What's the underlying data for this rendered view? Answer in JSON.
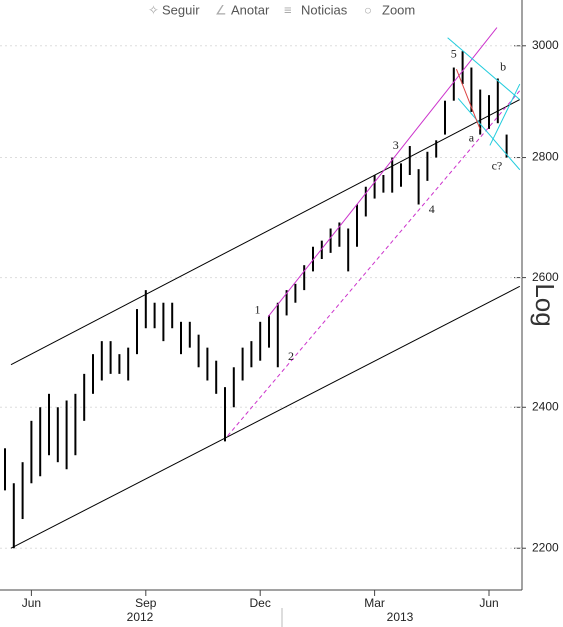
{
  "toolbar": [
    "Seguir",
    "Anotar",
    "Noticias",
    "Zoom"
  ],
  "chart_data": {
    "type": "ohlc",
    "y_label": "Log",
    "log_scale": true,
    "ylim": [
      2144,
      3086
    ],
    "yticks": [
      2200,
      2400,
      2600,
      2800,
      3000
    ],
    "categories": [
      null,
      null,
      null,
      "Jun",
      null,
      null,
      null,
      null,
      null,
      null,
      null,
      null,
      null,
      null,
      null,
      null,
      "Sep",
      null,
      null,
      null,
      null,
      null,
      null,
      null,
      null,
      null,
      null,
      null,
      null,
      "Dec",
      null,
      null,
      null,
      null,
      null,
      null,
      null,
      null,
      null,
      null,
      null,
      null,
      "Mar",
      null,
      null,
      null,
      null,
      null,
      null,
      null,
      null,
      null,
      null,
      null,
      null,
      "Jun",
      null,
      null
    ],
    "years": [
      "2012",
      "2013"
    ],
    "color": "#000000",
    "highs": [
      2340,
      2290,
      2320,
      2380,
      2400,
      2420,
      2400,
      2410,
      2420,
      2450,
      2480,
      2500,
      2500,
      2480,
      2490,
      2550,
      2580,
      2560,
      2560,
      2560,
      2530,
      2530,
      2510,
      2490,
      2470,
      2430,
      2460,
      2490,
      2500,
      2530,
      2540,
      2560,
      2580,
      2590,
      2620,
      2650,
      2660,
      2680,
      2690,
      2680,
      2720,
      2750,
      2770,
      2770,
      2800,
      2790,
      2820,
      2780,
      2810,
      2830,
      2900,
      2960,
      2990,
      2960,
      2920,
      2910,
      2940,
      2840
    ],
    "lows": [
      2280,
      2200,
      2240,
      2290,
      2300,
      2330,
      2320,
      2310,
      2330,
      2380,
      2420,
      2440,
      2450,
      2450,
      2440,
      2480,
      2520,
      2520,
      2500,
      2520,
      2480,
      2490,
      2460,
      2440,
      2420,
      2350,
      2400,
      2440,
      2460,
      2470,
      2490,
      2460,
      2540,
      2560,
      2580,
      2610,
      2630,
      2640,
      2650,
      2610,
      2650,
      2700,
      2730,
      2740,
      2740,
      2750,
      2770,
      2720,
      2760,
      2800,
      2840,
      2900,
      2930,
      2880,
      2840,
      2850,
      2860,
      2800
    ],
    "trendlines": [
      {
        "from": [
          0.68,
          2464
        ],
        "to": [
          58.5,
          2902
        ],
        "color": "#000000",
        "dashed": false
      },
      {
        "from": [
          0.68,
          2200
        ],
        "to": [
          58.5,
          2586
        ],
        "color": "#000000",
        "dashed": false
      },
      {
        "from": [
          29.9,
          2538
        ],
        "to": [
          55.9,
          3034
        ],
        "color": "#cc33cc",
        "dashed": false
      },
      {
        "from": [
          25.3,
          2358
        ],
        "to": [
          58.5,
          2918
        ],
        "color": "#cc33cc",
        "dashed": true
      },
      {
        "from": [
          50.3,
          3015
        ],
        "to": [
          58.5,
          2902
        ],
        "color": "#22ccdd",
        "dashed": false
      },
      {
        "from": [
          51.5,
          2904
        ],
        "to": [
          58.5,
          2779
        ],
        "color": "#22ccdd",
        "dashed": false
      },
      {
        "from": [
          55.1,
          2821
        ],
        "to": [
          58.5,
          2930
        ],
        "color": "#22ccdd",
        "dashed": false
      },
      {
        "from": [
          51.3,
          2957
        ],
        "to": [
          54,
          2849
        ],
        "color": "#dd4444",
        "dashed": false
      }
    ],
    "annotations": [
      {
        "text": "1",
        "at": [
          28.7,
          2547
        ]
      },
      {
        "text": "2",
        "at": [
          32.5,
          2475
        ]
      },
      {
        "text": "3",
        "at": [
          44.4,
          2820
        ]
      },
      {
        "text": "4",
        "at": [
          48.5,
          2710
        ]
      },
      {
        "text": "5",
        "at": [
          51,
          2983
        ]
      },
      {
        "text": "a",
        "at": [
          53,
          2833
        ]
      },
      {
        "text": "b",
        "at": [
          56.6,
          2960
        ]
      },
      {
        "text": "c?",
        "at": [
          55.9,
          2784
        ]
      }
    ]
  }
}
